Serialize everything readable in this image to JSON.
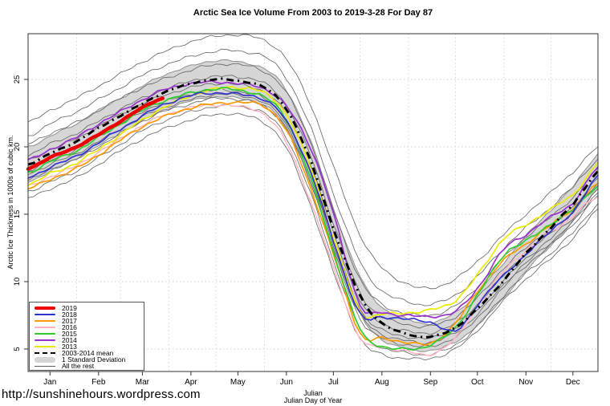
{
  "header": {
    "title": "Arctic Sea Ice Volume From 2003 to 2019-3-28  For Day 87"
  },
  "footer": {
    "url": "http://sunshinehours.wordpress.com",
    "xlabel_line1": "Julian",
    "xlabel_line2": "Julian Day of Year"
  },
  "chart_data": {
    "type": "line",
    "title": "Arctic Sea Ice Volume From 2003 to 2019-3-28  For Day 87",
    "ylabel": "Arctic Ice Thickness in 1000s of cubic km.",
    "xlabel": "Julian Day of Year",
    "xlim": [
      1,
      365
    ],
    "ylim": [
      3.5,
      28.5
    ],
    "yticks": [
      5,
      10,
      15,
      20,
      25
    ],
    "grid": "dotted",
    "legend_position": "bottom-left",
    "month_labels": [
      "Jan",
      "Feb",
      "Mar",
      "Apr",
      "May",
      "Jun",
      "Jul",
      "Aug",
      "Sep",
      "Oct",
      "Nov",
      "Dec"
    ],
    "month_tick_days": [
      15,
      46,
      74,
      105,
      135,
      166,
      196,
      227,
      258,
      288,
      319,
      349
    ],
    "month_start_days": [
      32,
      60,
      91,
      121,
      152,
      182,
      213,
      244,
      274,
      305,
      335
    ],
    "days": [
      1,
      15,
      32,
      46,
      60,
      74,
      87,
      105,
      121,
      135,
      152,
      166,
      182,
      196,
      213,
      227,
      244,
      258,
      274,
      288,
      305,
      319,
      335,
      349,
      357,
      365
    ],
    "band": {
      "label": "1 Standard Deviation",
      "fill": "#d6d6d6",
      "stroke": "#8f8f8f",
      "upper": [
        20.0,
        20.8,
        21.7,
        22.7,
        23.6,
        24.5,
        25.3,
        26.0,
        26.4,
        26.3,
        25.8,
        24.2,
        20.3,
        15.4,
        10.4,
        8.1,
        7.2,
        6.9,
        7.7,
        9.2,
        11.4,
        13.4,
        15.3,
        17.0,
        18.3,
        19.5
      ],
      "lower": [
        17.4,
        18.2,
        19.1,
        20.1,
        21.0,
        21.9,
        22.7,
        23.4,
        23.7,
        23.6,
        23.1,
        21.4,
        17.3,
        12.4,
        7.6,
        5.7,
        5.0,
        4.9,
        5.5,
        6.8,
        8.8,
        10.8,
        12.7,
        14.4,
        15.7,
        16.9
      ]
    },
    "mean": {
      "label": "2003-2014 mean",
      "color": "#000000",
      "width": 3,
      "dash": "9 5 2 5",
      "values": [
        18.7,
        19.5,
        20.4,
        21.4,
        22.3,
        23.2,
        24.0,
        24.7,
        25.0,
        24.9,
        24.4,
        22.8,
        18.8,
        13.9,
        9.0,
        6.9,
        6.1,
        5.9,
        6.6,
        8.0,
        10.1,
        12.1,
        14.0,
        15.7,
        17.0,
        18.2
      ]
    },
    "series": [
      {
        "name": "2019",
        "color": "#ee0000",
        "width": 4.5,
        "days": [
          1,
          15,
          32,
          46,
          60,
          74,
          87
        ],
        "values": [
          18.4,
          19.2,
          20.0,
          20.9,
          21.9,
          22.9,
          23.6
        ]
      },
      {
        "name": "2018",
        "color": "#3333cc",
        "width": 1.7,
        "values": [
          17.7,
          18.5,
          19.3,
          20.3,
          21.3,
          22.3,
          23.1,
          23.8,
          24.0,
          23.9,
          23.5,
          21.9,
          18.0,
          13.0,
          7.6,
          7.4,
          7.2,
          7.0,
          6.3,
          8.3,
          10.5,
          12.0,
          13.8,
          15.1,
          16.5,
          17.9
        ]
      },
      {
        "name": "2017",
        "color": "#ff9900",
        "width": 1.7,
        "values": [
          16.9,
          17.6,
          18.4,
          19.4,
          20.5,
          21.5,
          22.2,
          22.9,
          23.2,
          23.3,
          23.0,
          21.2,
          16.8,
          12.0,
          6.2,
          5.8,
          5.5,
          5.4,
          6.9,
          9.3,
          11.6,
          12.8,
          14.2,
          15.4,
          16.4,
          17.3
        ]
      },
      {
        "name": "2016",
        "color": "#ffb3c0",
        "width": 1.5,
        "values": [
          17.1,
          17.8,
          18.6,
          19.6,
          20.6,
          21.6,
          22.3,
          22.9,
          23.1,
          23.0,
          22.4,
          20.3,
          15.8,
          11.0,
          5.8,
          5.2,
          4.8,
          4.6,
          5.8,
          8.2,
          10.8,
          12.3,
          13.7,
          14.8,
          15.7,
          16.3
        ]
      },
      {
        "name": "2015",
        "color": "#2ecc2e",
        "width": 1.7,
        "values": [
          18.1,
          18.9,
          19.7,
          20.7,
          21.7,
          22.7,
          23.4,
          24.0,
          24.3,
          24.2,
          23.7,
          22.0,
          17.5,
          12.2,
          6.5,
          5.2,
          5.0,
          5.3,
          6.6,
          9.0,
          12.0,
          13.0,
          14.3,
          15.3,
          16.3,
          17.1
        ]
      },
      {
        "name": "2014",
        "color": "#9932cc",
        "width": 1.7,
        "values": [
          19.0,
          19.8,
          20.7,
          21.7,
          22.6,
          23.5,
          24.2,
          24.7,
          24.8,
          24.7,
          24.3,
          23.0,
          19.8,
          15.0,
          8.3,
          7.7,
          7.5,
          7.4,
          7.8,
          9.5,
          12.4,
          13.5,
          14.8,
          15.8,
          17.2,
          18.5
        ]
      },
      {
        "name": "2013",
        "color": "#ebeb00",
        "width": 1.7,
        "values": [
          17.2,
          18.0,
          18.8,
          19.8,
          20.9,
          22.0,
          22.9,
          23.8,
          24.3,
          24.4,
          24.0,
          22.4,
          18.3,
          13.2,
          7.8,
          7.6,
          7.7,
          7.9,
          8.6,
          10.5,
          13.2,
          14.2,
          15.4,
          16.4,
          17.6,
          18.8
        ]
      }
    ],
    "rest": {
      "label": "All the rest",
      "color": "#606060",
      "width": 0.8,
      "lines": [
        [
          21.8,
          22.7,
          23.6,
          24.5,
          25.4,
          26.3,
          27.0,
          27.8,
          28.2,
          28.3,
          27.9,
          26.5,
          23.0,
          18.5,
          13.5,
          11.0,
          9.8,
          9.5,
          10.2,
          11.5,
          13.5,
          15.0,
          16.6,
          18.1,
          19.1,
          20.0
        ],
        [
          20.8,
          21.7,
          22.6,
          23.5,
          24.4,
          25.3,
          26.0,
          26.7,
          27.1,
          27.1,
          26.7,
          25.1,
          21.3,
          16.5,
          11.5,
          9.3,
          8.5,
          8.3,
          9.0,
          10.4,
          12.5,
          14.0,
          15.5,
          17.0,
          18.1,
          19.1
        ],
        [
          20.2,
          21.0,
          21.8,
          22.7,
          23.6,
          24.4,
          25.0,
          25.7,
          26.1,
          26.1,
          25.6,
          24.0,
          20.2,
          15.3,
          10.2,
          8.3,
          7.6,
          7.5,
          8.2,
          9.6,
          11.8,
          13.3,
          14.8,
          16.2,
          17.3,
          18.4
        ],
        [
          19.4,
          20.2,
          21.0,
          21.9,
          22.8,
          23.6,
          24.2,
          24.9,
          25.2,
          25.2,
          24.7,
          23.1,
          19.2,
          14.3,
          9.2,
          7.4,
          6.8,
          6.7,
          7.4,
          8.8,
          11.0,
          12.5,
          14.0,
          15.5,
          16.6,
          17.7
        ],
        [
          19.0,
          19.8,
          20.6,
          21.5,
          22.4,
          23.2,
          23.8,
          24.4,
          24.7,
          24.6,
          24.1,
          22.4,
          18.5,
          13.6,
          8.6,
          6.9,
          6.3,
          6.2,
          6.9,
          8.3,
          10.5,
          12.1,
          13.6,
          15.1,
          16.2,
          17.3
        ],
        [
          18.2,
          19.0,
          19.8,
          20.8,
          21.7,
          22.6,
          23.3,
          23.9,
          24.2,
          24.1,
          23.6,
          21.9,
          17.9,
          13.0,
          8.0,
          6.4,
          5.9,
          5.8,
          6.5,
          7.9,
          10.1,
          11.7,
          13.2,
          14.7,
          15.8,
          16.9
        ],
        [
          18.0,
          18.7,
          19.5,
          20.4,
          21.3,
          22.2,
          22.9,
          23.5,
          23.9,
          23.8,
          23.3,
          21.6,
          17.6,
          12.7,
          7.7,
          6.1,
          5.6,
          5.5,
          6.2,
          7.6,
          9.8,
          11.4,
          12.9,
          14.4,
          15.5,
          16.6
        ],
        [
          17.5,
          18.3,
          19.1,
          20.0,
          21.0,
          21.9,
          22.6,
          23.2,
          23.6,
          23.5,
          23.0,
          21.3,
          17.2,
          12.3,
          7.3,
          5.8,
          5.3,
          5.2,
          5.9,
          7.3,
          9.6,
          11.2,
          12.7,
          14.2,
          15.3,
          16.4
        ],
        [
          16.7,
          17.4,
          18.2,
          19.2,
          20.2,
          21.2,
          21.9,
          22.6,
          23.0,
          23.0,
          22.5,
          20.7,
          16.4,
          11.5,
          6.5,
          5.1,
          4.7,
          4.6,
          5.3,
          6.7,
          9.0,
          10.6,
          12.1,
          13.6,
          14.7,
          15.8
        ],
        [
          16.2,
          16.9,
          17.7,
          18.7,
          19.7,
          20.6,
          21.3,
          22.0,
          22.4,
          22.4,
          21.8,
          19.9,
          15.5,
          10.7,
          5.8,
          4.6,
          4.3,
          4.3,
          5.0,
          6.4,
          8.6,
          10.2,
          11.7,
          13.2,
          14.3,
          15.4
        ]
      ]
    },
    "z_order": [
      "2016",
      "2017",
      "2013",
      "2015",
      "2018",
      "2014",
      "mean",
      "2019"
    ],
    "legend_items": [
      "2019",
      "2018",
      "2017",
      "2016",
      "2015",
      "2014",
      "2013",
      "2003-2014 mean",
      "1 Standard Deviation",
      "All the rest"
    ]
  }
}
